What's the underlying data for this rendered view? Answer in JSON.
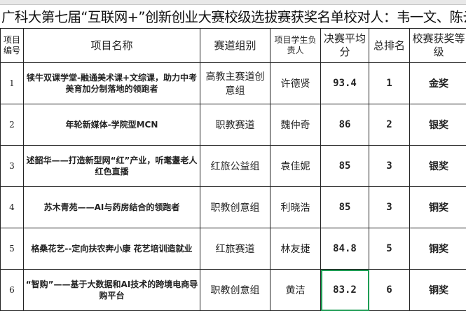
{
  "title": "广科大第七届“互联网+”创新创业大赛校级选拔赛获奖名单校对人：韦一文、陈云鹏",
  "headers": {
    "id": "项目编号",
    "name": "项目名称",
    "track": "赛道组别",
    "leader": "项目学生负责人",
    "score": "决赛平均分",
    "rank": "总排名",
    "award": "校赛获奖等级"
  },
  "rows": [
    {
      "id": "1",
      "name": "犊牛双课学堂-融通美术课+文综课，助力中考美育加分制落地的领跑者",
      "track": "高教主赛道创意组",
      "leader": "许德贤",
      "score": "93.4",
      "rank": "1",
      "award": "金奖"
    },
    {
      "id": "2",
      "name": "年轮新媒体-学院型MCN",
      "track": "职教赛道",
      "leader": "魏仲奇",
      "score": "86",
      "rank": "2",
      "award": "银奖"
    },
    {
      "id": "3",
      "name": "述韶华——打造新型网“红”产业，听耄耋老人红色直播",
      "track": "红旅公益组",
      "leader": "袁佳妮",
      "score": "85",
      "rank": "3",
      "award": "银奖"
    },
    {
      "id": "4",
      "name": "苏木青苑——AI与药房结合的领跑者",
      "track": "职教创意组",
      "leader": "利晓浩",
      "score": "85",
      "rank": "3",
      "award": "铜奖"
    },
    {
      "id": "5",
      "name": "格桑花艺--定向扶农奔小康 花艺培训造就业",
      "track": "红旅赛道",
      "leader": "林友捷",
      "score": "84.8",
      "rank": "5",
      "award": "铜奖"
    },
    {
      "id": "6",
      "name": "“智购”——基于大数据和AI技术的跨境电商导购平台",
      "track": "职教创意组",
      "leader": "黄洁",
      "score": "83.2",
      "rank": "6",
      "award": "铜奖"
    }
  ],
  "selection_color": "#1f9d55"
}
